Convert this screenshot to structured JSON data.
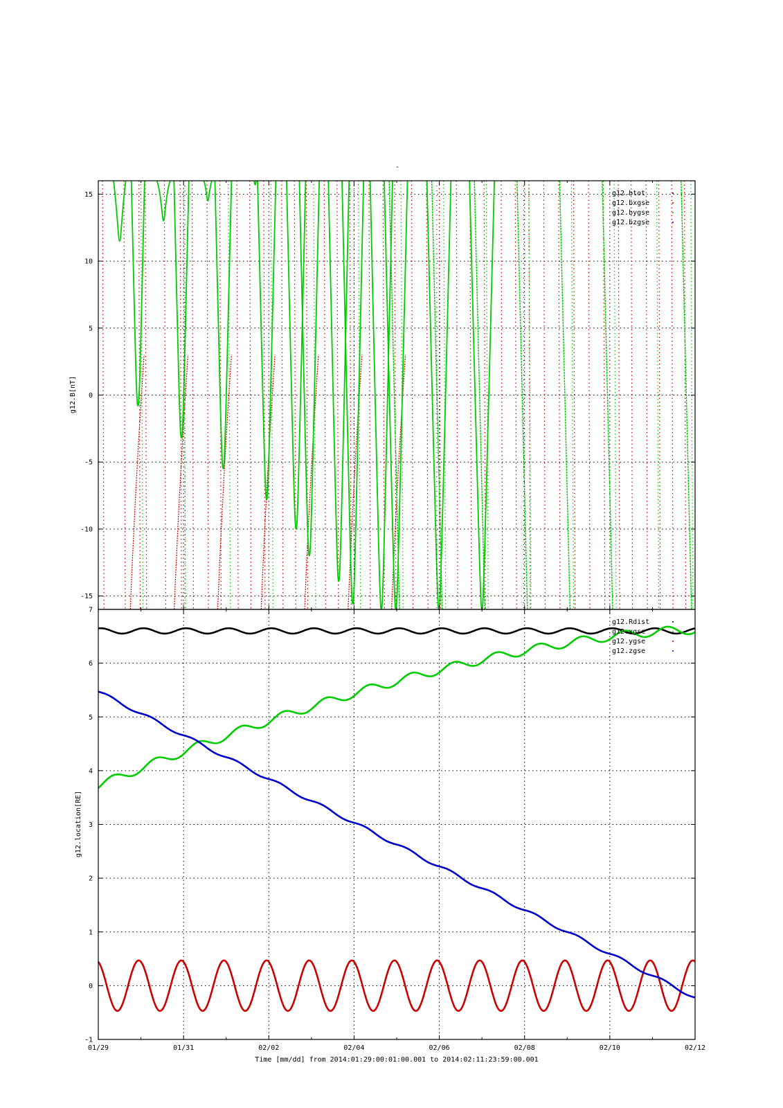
{
  "top_label": "-",
  "xaxis": {
    "title": "Time [mm/dd]  from 2014:01:29:00:01:00.001  to  2014:02:11:23:59:00.001",
    "tick_labels": [
      "01/29",
      "01/31",
      "02/02",
      "02/04",
      "02/06",
      "02/08",
      "02/10",
      "02/12"
    ],
    "start_day": 0,
    "end_day": 14
  },
  "chart_data": [
    {
      "type": "line",
      "ylabel": "g12.B[nT]",
      "ylim": [
        -16,
        16
      ],
      "yticks": [
        -15,
        -10,
        -5,
        0,
        5,
        10,
        15
      ],
      "grid": true,
      "legend_placement": "top-right",
      "series": [
        {
          "name": "g12.btot",
          "color": "#000000"
        },
        {
          "name": "g12.bxgse",
          "color": "#cc0000"
        },
        {
          "name": "g12.bygse",
          "color": "#00cc00"
        },
        {
          "name": "g12.bzgse",
          "color": "#0000cc"
        }
      ],
      "spike_minima": {
        "x_days": [
          0.5,
          0.93,
          1.53,
          1.95,
          2.57,
          2.93,
          3.68,
          3.95,
          4.64,
          4.95,
          5.64,
          5.97,
          6.64,
          6.98,
          7.99,
          9.0
        ],
        "y_values": [
          11.5,
          -0.8,
          13.0,
          -3.2,
          14.5,
          -5.5,
          15.7,
          -7.8,
          -10.0,
          -12.0,
          -13.9,
          -15.6,
          -16.0,
          -16.0,
          -16.0,
          -16.0
        ]
      }
    },
    {
      "type": "line",
      "ylabel": "g12.location[RE]",
      "ylim": [
        -1,
        7
      ],
      "yticks": [
        -1,
        0,
        1,
        2,
        3,
        4,
        5,
        6,
        7
      ],
      "grid": true,
      "legend_placement": "top-right",
      "series": [
        {
          "name": "g12.Rdist",
          "color": "#000000",
          "mean": 6.6,
          "amplitude": 0.05,
          "period_days": 1
        },
        {
          "name": "g12.xgse",
          "color": "#00cc00",
          "start": 3.72,
          "end": 6.62,
          "step_amplitude": 0.08,
          "period_days": 1
        },
        {
          "name": "g12.ygse",
          "color": "#cc0000",
          "mean": 0.0,
          "amplitude": 0.47,
          "period_days": 1
        },
        {
          "name": "g12.zgse",
          "color": "#0000cc",
          "start": 5.47,
          "end": -0.22,
          "amplitude": 0.03,
          "period_days": 1
        }
      ]
    }
  ]
}
